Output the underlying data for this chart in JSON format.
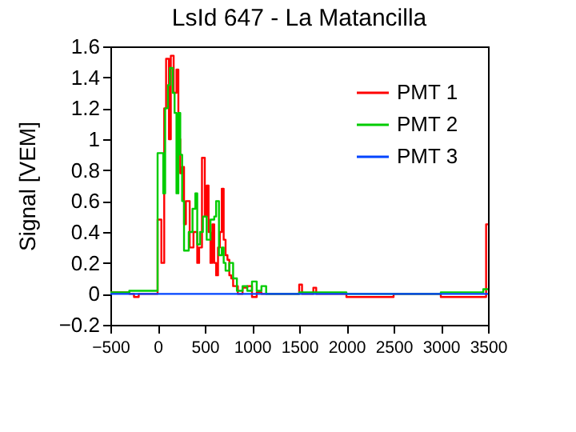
{
  "chart_data": {
    "type": "step",
    "title": "LsId 647 - La Matancilla",
    "ylabel": "Signal [VEM]",
    "xlim": [
      -500,
      3500
    ],
    "xticks": [
      -500,
      0,
      500,
      1000,
      1500,
      2000,
      2500,
      3000,
      3500
    ],
    "ylim": [
      -0.2,
      1.6
    ],
    "yticks": [
      -0.2,
      0,
      0.2,
      0.4,
      0.6,
      0.8,
      1,
      1.2,
      1.4,
      1.6
    ],
    "grid": false,
    "legend": "top right",
    "series": [
      {
        "name": "PMT 1",
        "color": "#ff0000",
        "x": [
          -500,
          -300,
          -250,
          -200,
          0,
          40,
          70,
          90,
          120,
          140,
          170,
          200,
          220,
          240,
          260,
          280,
          300,
          340,
          380,
          420,
          440,
          470,
          500,
          520,
          540,
          560,
          580,
          600,
          620,
          640,
          660,
          680,
          700,
          720,
          740,
          760,
          780,
          800,
          850,
          900,
          950,
          1000,
          1050,
          1100,
          1500,
          1530,
          1650,
          1680,
          2000,
          2500,
          3000,
          3480,
          3500
        ],
        "values": [
          0.01,
          0,
          -0.02,
          0,
          0.48,
          0.2,
          1.2,
          1.52,
          1.0,
          1.54,
          1.3,
          1.45,
          1.0,
          0.78,
          0.82,
          0.45,
          0.6,
          0.3,
          0.4,
          0.2,
          0.3,
          0.88,
          0.5,
          0.7,
          0.4,
          0.2,
          0.45,
          0.2,
          0.12,
          0.3,
          0.4,
          0.68,
          0.35,
          0.25,
          0.22,
          0.12,
          0.1,
          0.05,
          0,
          0.04,
          0.05,
          -0.02,
          0.01,
          0,
          0.06,
          0,
          0.04,
          0,
          -0.02,
          0,
          -0.02,
          0.45,
          0.45
        ]
      },
      {
        "name": "PMT 2",
        "color": "#00cc00",
        "x": [
          -500,
          -300,
          0,
          60,
          80,
          110,
          130,
          160,
          180,
          200,
          220,
          240,
          260,
          280,
          330,
          370,
          400,
          420,
          450,
          480,
          520,
          560,
          600,
          620,
          650,
          680,
          700,
          720,
          760,
          800,
          840,
          900,
          950,
          1000,
          1050,
          1100,
          1150,
          1500,
          2000,
          3000,
          3450,
          3500
        ],
        "values": [
          0.01,
          0.02,
          0.91,
          0.65,
          1.2,
          1.35,
          1.46,
          1.3,
          1.17,
          0.65,
          1.17,
          0.9,
          0.6,
          0.28,
          0.4,
          0.55,
          0.65,
          0.32,
          0.4,
          0.5,
          0.35,
          0.48,
          0.5,
          0.6,
          0.25,
          0.3,
          0.2,
          0.15,
          0.2,
          0.1,
          0.02,
          0.05,
          0.02,
          0.08,
          0.02,
          0.05,
          0,
          0.01,
          0,
          0.01,
          0.03,
          0.03
        ]
      },
      {
        "name": "PMT 3",
        "color": "#0044ff",
        "x": [
          -500,
          3500
        ],
        "values": [
          0,
          0
        ]
      }
    ]
  }
}
